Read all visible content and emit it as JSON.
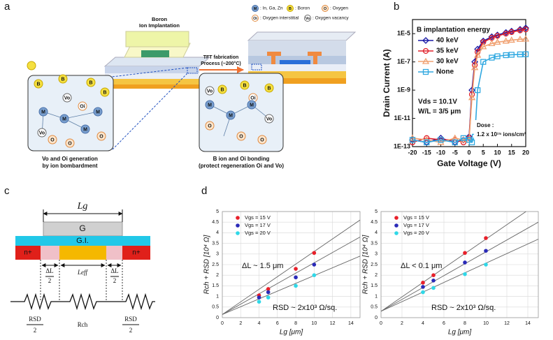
{
  "panel_labels": [
    "a",
    "b",
    "c",
    "d"
  ],
  "diagram_a": {
    "implant_label": [
      "Boron",
      "Ion Implantation"
    ],
    "process_label": [
      "TFT fabrication",
      "Process (~200°C)"
    ],
    "legend": [
      {
        "symbol": "M",
        "text": ": In, Ga, Zn"
      },
      {
        "symbol": "B",
        "text": ": Boron"
      },
      {
        "symbol": "O",
        "text": ": Oxygen"
      },
      {
        "symbol": "Oi",
        "text": ": Oxygen interstitial"
      },
      {
        "symbol": "Vo",
        "text": ": Oxygen vacancy"
      }
    ],
    "atoms_left": [
      "B",
      "B",
      "B",
      "B",
      "Vo",
      "Oi",
      "M",
      "M",
      "M",
      "M",
      "O",
      "O",
      "O",
      "Vo"
    ],
    "atoms_right": [
      "B",
      "B",
      "B",
      "Vo",
      "Oi",
      "M",
      "M",
      "M",
      "O",
      "O",
      "Vo",
      "O"
    ],
    "left_caption": [
      "Vo and Oi generation",
      "by ion bombardment"
    ],
    "right_caption": [
      "B ion and Oi bonding",
      "(protect regeneration Oi and Vo)"
    ]
  },
  "diagram_c": {
    "gate_length": "Lg",
    "gate": "G",
    "insulator": "G.I.",
    "contacts": [
      "n+",
      "n+"
    ],
    "offsets": [
      [
        "ΔL",
        "2"
      ],
      [
        "ΔL",
        "2"
      ]
    ],
    "effective_length": "Leff",
    "resistors": [
      [
        "RSD",
        "2"
      ],
      [
        "Rch"
      ],
      [
        "RSD",
        "2"
      ]
    ]
  },
  "chart_data": [
    {
      "type": "line",
      "y_label": "Drain Current (A)",
      "x_label": "Gate Voltage (V)",
      "legend_title": "B implantation energy",
      "legend": "upper left",
      "log_y": true,
      "x": [
        -20,
        -15,
        -10,
        -5,
        -2,
        0,
        1,
        2,
        3,
        5,
        8,
        10,
        13,
        15,
        18,
        20
      ],
      "series": [
        {
          "name": "40 keV",
          "color": "#1a1aa6",
          "marker": "diamond",
          "values": [
            3e-13,
            2e-13,
            4e-13,
            2e-13,
            3e-13,
            5e-13,
            1e-09,
            1e-07,
            8e-07,
            3e-06,
            6e-06,
            8e-06,
            1.2e-05,
            1.5e-05,
            2e-05,
            2.5e-05
          ]
        },
        {
          "name": "35 keV",
          "color": "#e0202a",
          "marker": "circle",
          "values": [
            2e-13,
            4e-13,
            3e-13,
            3e-13,
            2e-13,
            4e-13,
            5e-10,
            6e-08,
            5e-07,
            2.5e-06,
            5e-06,
            7e-06,
            1e-05,
            1.3e-05,
            1.7e-05,
            2e-05
          ]
        },
        {
          "name": "30 keV",
          "color": "#f0a070",
          "marker": "triangle",
          "values": [
            4e-13,
            3e-13,
            2e-13,
            4e-13,
            3e-13,
            3e-13,
            3e-10,
            4e-08,
            3e-07,
            1.2e-06,
            2e-06,
            2.5e-06,
            3e-06,
            3.5e-06,
            4e-06,
            4.2e-06
          ]
        },
        {
          "name": "None",
          "color": "#30a8e0",
          "marker": "square",
          "values": [
            3e-13,
            2e-13,
            3e-13,
            2e-13,
            4e-13,
            3e-13,
            2e-13,
            5e-13,
            1e-09,
            1e-07,
            2e-07,
            2.5e-07,
            3e-07,
            3.2e-07,
            3.4e-07,
            3.5e-07
          ]
        }
      ],
      "xlim": [
        -20,
        20
      ],
      "ylim": [
        1e-13,
        0.0001
      ],
      "xticks": [
        -20,
        -15,
        -10,
        -5,
        0,
        5,
        10,
        15,
        20
      ],
      "yticks": [
        {
          "value": 1e-13,
          "label": "1E-13"
        },
        {
          "value": 1e-11,
          "label": "1E-11"
        },
        {
          "value": 1e-09,
          "label": "1E-9"
        },
        {
          "value": 1e-07,
          "label": "1E-7"
        },
        {
          "value": 1e-05,
          "label": "1E-5"
        }
      ],
      "annotations": [
        "Vds = 10.1V",
        "W/L = 3/5 μm",
        "Dose :",
        "1.2 x 10¹⁵ ions/cm²"
      ]
    },
    {
      "type": "scatter",
      "y_label": "Rch + RSD [10⁴ Ω]",
      "x_label": "Lg [μm]",
      "x": [
        4,
        5,
        8,
        10
      ],
      "fit_x": [
        0,
        15
      ],
      "series": [
        {
          "name": "Vgs = 15 V",
          "color": "#e8202a",
          "values": [
            1.05,
            1.35,
            2.3,
            3.05
          ],
          "fit": [
            0.15,
            4.6
          ]
        },
        {
          "name": "Vgs = 17 V",
          "color": "#2a2ab8",
          "values": [
            0.95,
            1.2,
            1.9,
            2.5
          ],
          "fit": [
            0.15,
            3.8
          ]
        },
        {
          "name": "Vgs = 20 V",
          "color": "#30d8e8",
          "values": [
            0.75,
            0.95,
            1.5,
            2.0
          ],
          "fit": [
            0.15,
            2.9
          ]
        }
      ],
      "xlim": [
        0,
        15
      ],
      "ylim": [
        0,
        5
      ],
      "xticks": [
        0,
        2,
        4,
        6,
        8,
        10,
        12,
        14
      ],
      "yticks": [
        0,
        0.5,
        1,
        1.5,
        2,
        2.5,
        3,
        3.5,
        4,
        4.5,
        5
      ],
      "annotations": [
        "ΔL ~ 1.5 μm",
        "RSD ~ 2x10³ Ω/sq."
      ]
    },
    {
      "type": "scatter",
      "y_label": "Rch + RSD [10⁴ Ω]",
      "x_label": "Lg [μm]",
      "x": [
        4,
        5,
        8,
        10
      ],
      "fit_x": [
        0,
        15
      ],
      "series": [
        {
          "name": "Vgs = 15 V",
          "color": "#e8202a",
          "values": [
            1.65,
            2.0,
            3.05,
            3.75
          ],
          "fit": [
            0.3,
            5.4
          ]
        },
        {
          "name": "Vgs = 17 V",
          "color": "#2a2ab8",
          "values": [
            1.45,
            1.75,
            2.6,
            3.15
          ],
          "fit": [
            0.3,
            4.5
          ]
        },
        {
          "name": "Vgs = 20 V",
          "color": "#30d8e8",
          "values": [
            1.2,
            1.4,
            2.05,
            2.5
          ],
          "fit": [
            0.3,
            3.7
          ]
        }
      ],
      "xlim": [
        0,
        15
      ],
      "ylim": [
        0,
        5
      ],
      "xticks": [
        0,
        2,
        4,
        6,
        8,
        10,
        12,
        14
      ],
      "yticks": [
        0,
        0.5,
        1,
        1.5,
        2,
        2.5,
        3,
        3.5,
        4,
        4.5,
        5
      ],
      "annotations": [
        "ΔL < 0.1 μm",
        "RSD ~ 2x10³ Ω/sq."
      ]
    }
  ]
}
